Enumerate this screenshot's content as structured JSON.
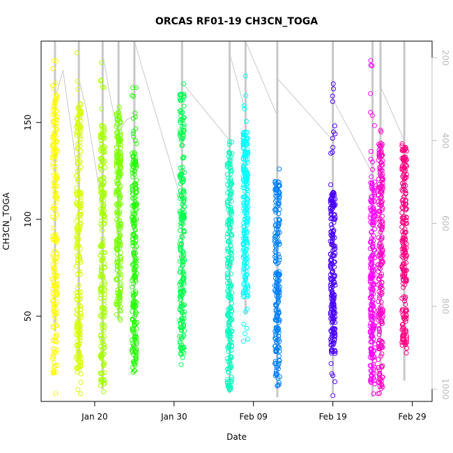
{
  "chart_data": {
    "type": "scatter",
    "title": "ORCAS RF01-19 CH3CN_TOGA",
    "xlabel": "Date",
    "ylabel": "CH3CN_TOGA",
    "x_ticks": [
      "Jan 20",
      "Jan 30",
      "Feb 09",
      "Feb 19",
      "Feb 29"
    ],
    "x_tick_dates": [
      "2016-01-20",
      "2016-01-30",
      "2016-02-09",
      "2016-02-19",
      "2016-02-29"
    ],
    "xlim": [
      "2016-01-13T06:00",
      "2016-03-02T12:00"
    ],
    "y_ticks": [
      50,
      100,
      150
    ],
    "ylim": [
      6,
      192
    ],
    "y2_ticks": [
      200,
      400,
      600,
      800,
      1000
    ],
    "y2lim": [
      1030,
      160
    ],
    "y2_reversed": true,
    "y2_color": "#bdbdbd",
    "marker": "open-circle",
    "grid": false,
    "legend": "none",
    "flights": [
      {
        "date": "2016-01-15",
        "color": "#ffff00",
        "ymin": 10,
        "ymax": 182,
        "y_dense": [
          20,
          165
        ]
      },
      {
        "date": "2016-01-18",
        "color": "#d4ff00",
        "ymin": 10,
        "ymax": 186,
        "y_dense": [
          20,
          160
        ]
      },
      {
        "date": "2016-01-21",
        "color": "#a6ff00",
        "ymin": 11,
        "ymax": 181,
        "y_dense": [
          15,
          150
        ]
      },
      {
        "date": "2016-01-23",
        "color": "#77ff00",
        "ymin": 48,
        "ymax": 158,
        "y_dense": [
          50,
          155
        ]
      },
      {
        "date": "2016-01-25",
        "color": "#22ff00",
        "ymin": 21,
        "ymax": 168,
        "y_dense": [
          25,
          135
        ]
      },
      {
        "date": "2016-01-31",
        "color": "#00ff4d",
        "ymin": 25,
        "ymax": 170,
        "y_dense": [
          30,
          165
        ]
      },
      {
        "date": "2016-02-06",
        "color": "#00ffbf",
        "ymin": 12,
        "ymax": 140,
        "y_dense": [
          12,
          135
        ]
      },
      {
        "date": "2016-02-08",
        "color": "#00ffff",
        "ymin": 37,
        "ymax": 174,
        "y_dense": [
          60,
          145
        ]
      },
      {
        "date": "2016-02-12",
        "color": "#0080ff",
        "ymin": 14,
        "ymax": 126,
        "y_dense": [
          14,
          120
        ]
      },
      {
        "date": "2016-02-19",
        "color": "#4a00ff",
        "ymin": 9,
        "ymax": 170,
        "y_dense": [
          30,
          115
        ]
      },
      {
        "date": "2016-02-24",
        "color": "#ff00ff",
        "ymin": 10,
        "ymax": 182,
        "y_dense": [
          15,
          120
        ]
      },
      {
        "date": "2016-02-25",
        "color": "#ff00c8",
        "ymin": 10,
        "ymax": 146,
        "y_dense": [
          12,
          140
        ]
      },
      {
        "date": "2016-02-28",
        "color": "#ff0080",
        "ymin": 31,
        "ymax": 139,
        "y_dense": [
          35,
          138
        ]
      }
    ],
    "altitude_tracks": [
      {
        "date": "2016-01-15",
        "pmin": 160,
        "pmax": 860
      },
      {
        "date": "2016-01-18",
        "pmin": 160,
        "pmax": 920
      },
      {
        "date": "2016-01-21",
        "pmin": 160,
        "pmax": 1000
      },
      {
        "date": "2016-01-23",
        "pmin": 160,
        "pmax": 830
      },
      {
        "date": "2016-01-25",
        "pmin": 160,
        "pmax": 900
      },
      {
        "date": "2016-01-31",
        "pmin": 160,
        "pmax": 800
      },
      {
        "date": "2016-02-06",
        "pmin": 160,
        "pmax": 1010
      },
      {
        "date": "2016-02-08",
        "pmin": 160,
        "pmax": 820
      },
      {
        "date": "2016-02-12",
        "pmin": 160,
        "pmax": 1020
      },
      {
        "date": "2016-02-19",
        "pmin": 160,
        "pmax": 1010
      },
      {
        "date": "2016-02-24",
        "pmin": 160,
        "pmax": 1020
      },
      {
        "date": "2016-02-25",
        "pmin": 160,
        "pmax": 1000
      },
      {
        "date": "2016-02-28",
        "pmin": 160,
        "pmax": 980
      }
    ],
    "transit_lines": [
      {
        "x": [
          "2016-01-15",
          "2016-01-16",
          "2016-01-18"
        ],
        "y2": [
          300,
          230,
          500
        ]
      },
      {
        "x": [
          "2016-01-18",
          "2016-01-19",
          "2016-01-21"
        ],
        "y2": [
          250,
          330,
          570
        ]
      },
      {
        "x": [
          "2016-01-21",
          "2016-01-22",
          "2016-01-23"
        ],
        "y2": [
          190,
          300,
          385
        ]
      },
      {
        "x": [
          "2016-01-23",
          "2016-01-24",
          "2016-01-25"
        ],
        "y2": [
          380,
          350,
          340
        ]
      },
      {
        "x": [
          "2016-01-25",
          "2016-01-31"
        ],
        "y2": [
          160,
          550
        ]
      },
      {
        "x": [
          "2016-01-31",
          "2016-02-06"
        ],
        "y2": [
          260,
          400
        ]
      },
      {
        "x": [
          "2016-02-06",
          "2016-02-08"
        ],
        "y2": [
          190,
          330
        ]
      },
      {
        "x": [
          "2016-02-08",
          "2016-02-12"
        ],
        "y2": [
          160,
          340
        ]
      },
      {
        "x": [
          "2016-02-12",
          "2016-02-19"
        ],
        "y2": [
          250,
          400
        ]
      },
      {
        "x": [
          "2016-02-19",
          "2016-02-24"
        ],
        "y2": [
          300,
          480
        ]
      },
      {
        "x": [
          "2016-02-25",
          "2016-02-28"
        ],
        "y2": [
          270,
          400
        ]
      }
    ]
  }
}
